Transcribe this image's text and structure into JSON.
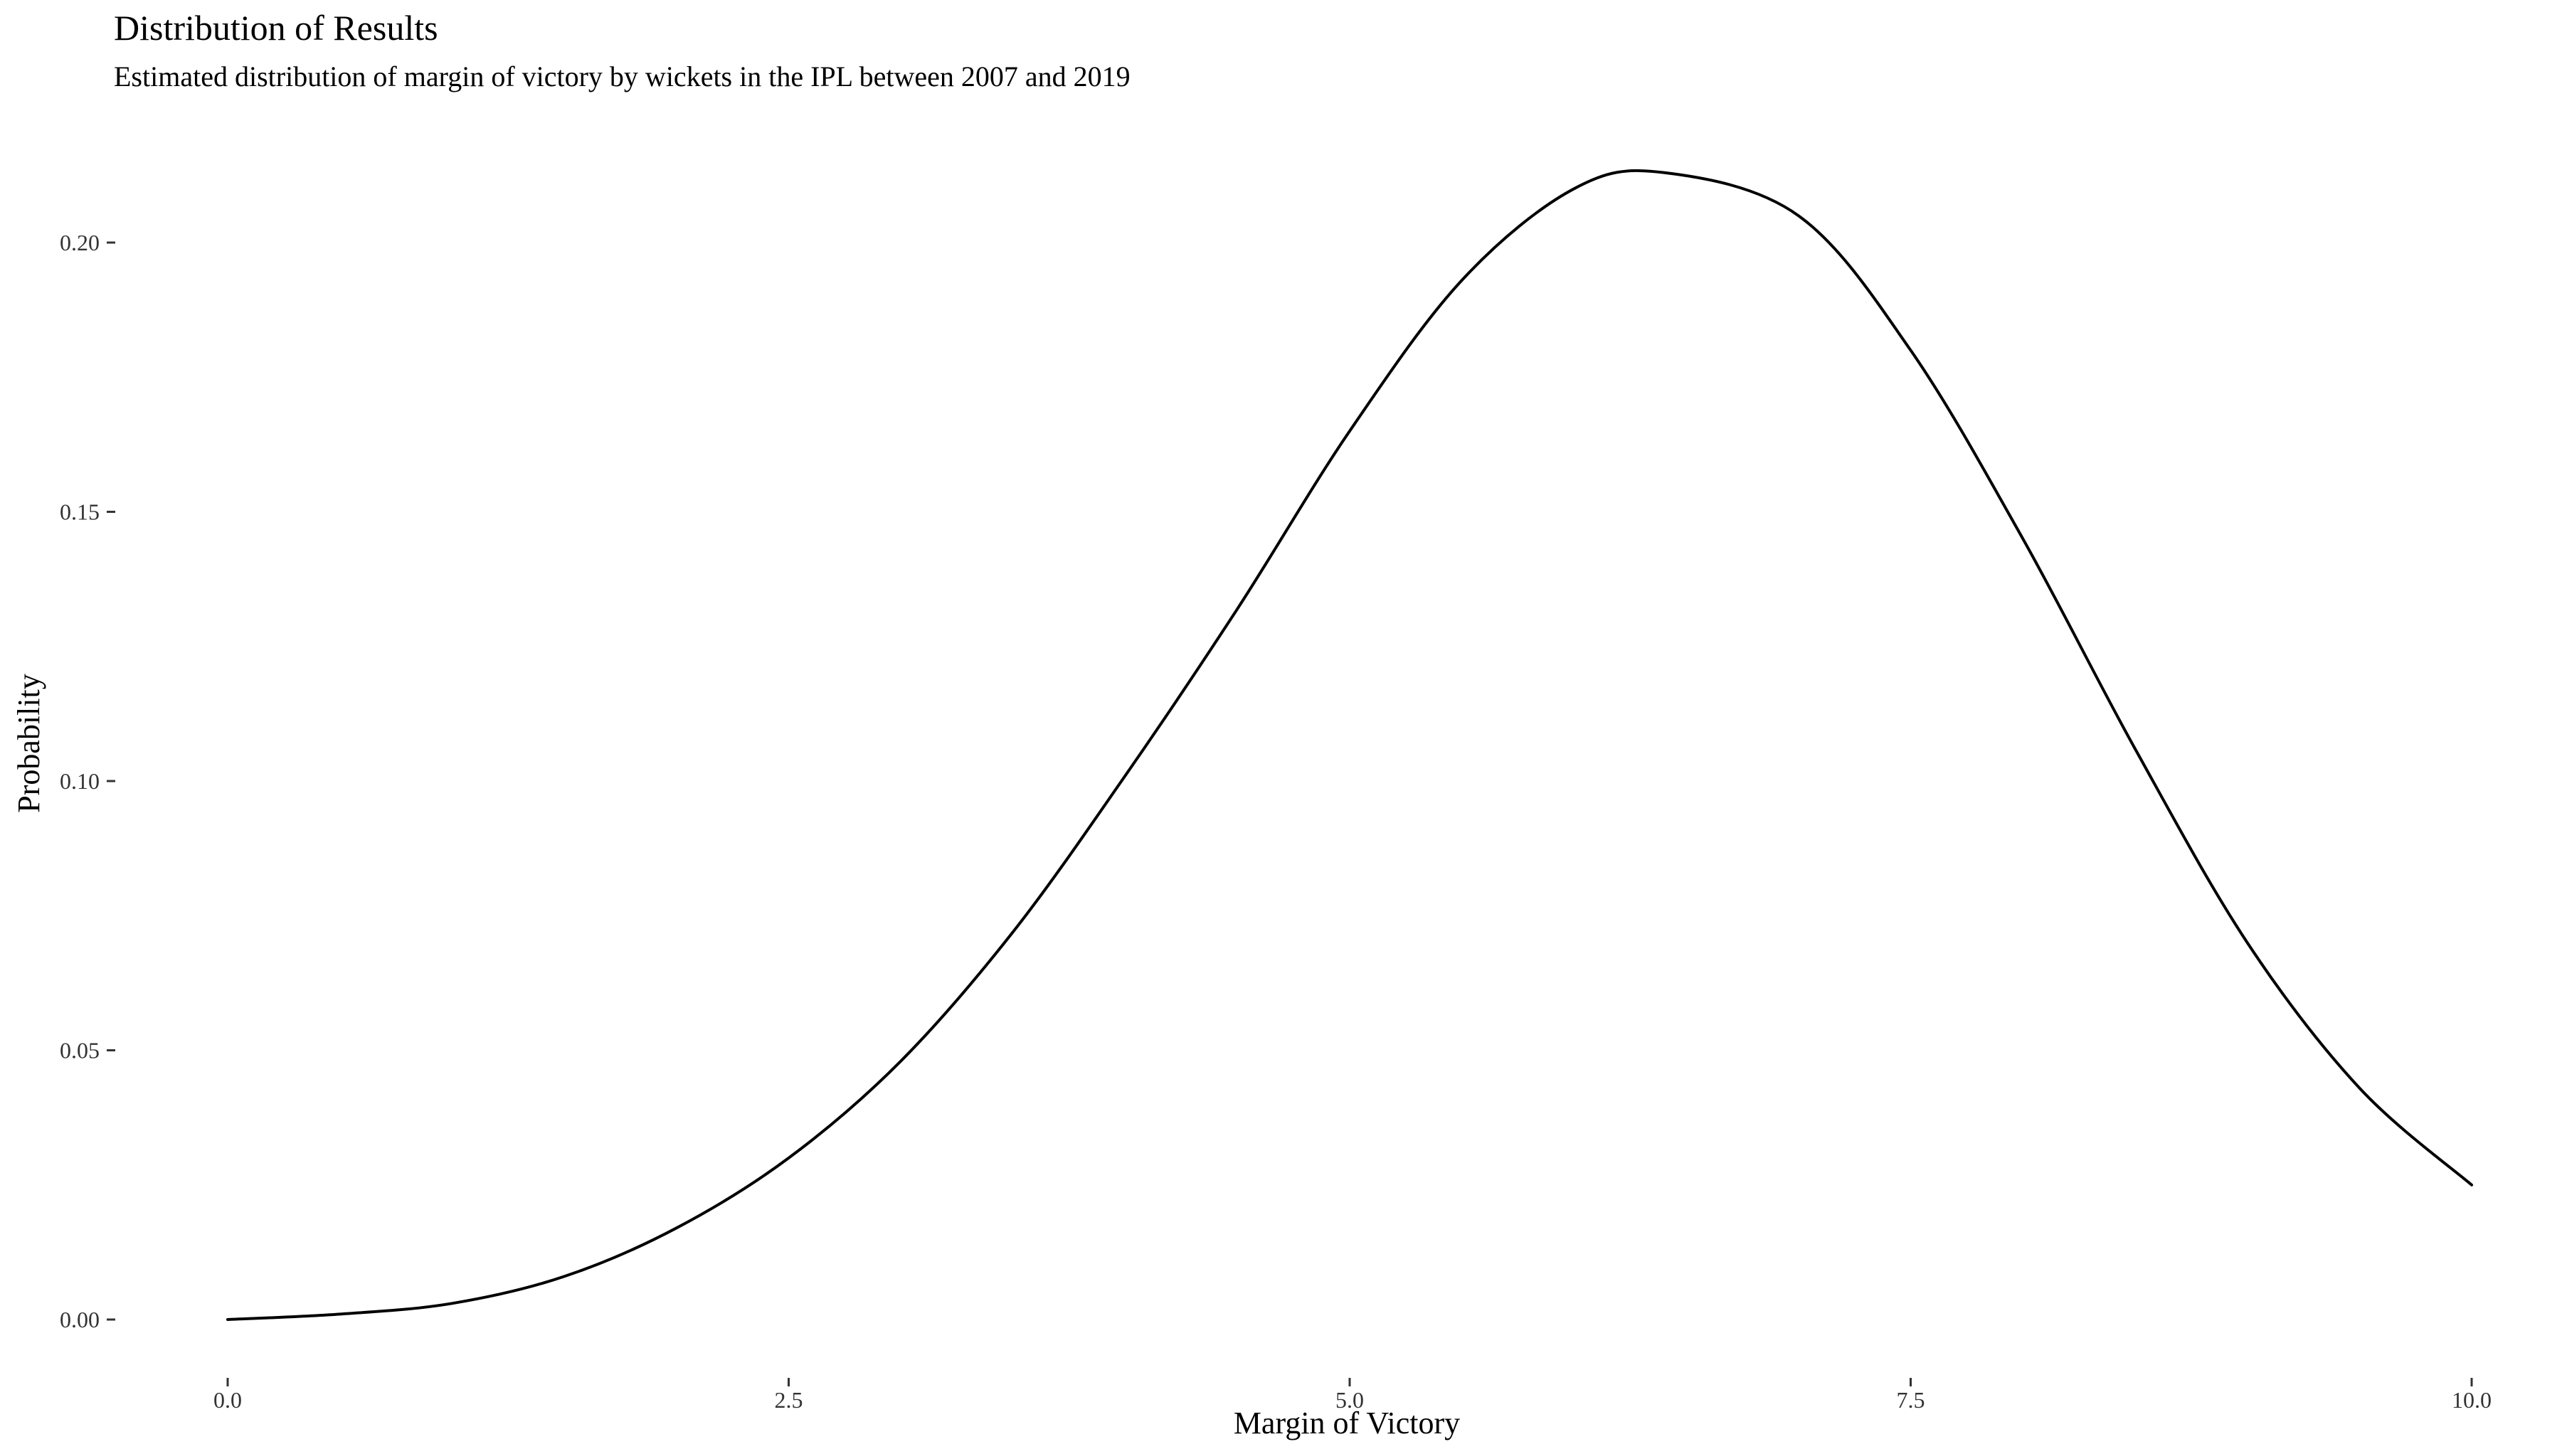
{
  "chart_data": {
    "type": "line",
    "title": "Distribution of Results",
    "subtitle": "Estimated distribution of margin of victory by wickets in the IPL between 2007 and 2019",
    "xlabel": "Margin of Victory",
    "ylabel": "Probability",
    "xlim": [
      0,
      10
    ],
    "ylim": [
      0,
      0.21
    ],
    "x_ticks": [
      "0.0",
      "2.5",
      "5.0",
      "7.5",
      "10.0"
    ],
    "y_ticks": [
      "0.00",
      "0.05",
      "0.10",
      "0.15",
      "0.20"
    ],
    "grid": false,
    "legend": "none",
    "series": [
      {
        "color": "#000000",
        "x": [
          0,
          0.5,
          1.0,
          1.5,
          2.0,
          2.5,
          3.0,
          3.5,
          4.0,
          4.5,
          5.0,
          5.5,
          6.0,
          6.4,
          7.0,
          7.5,
          8.0,
          8.5,
          9.0,
          9.5,
          10.0
        ],
        "y": [
          0.0,
          0.001,
          0.003,
          0.008,
          0.017,
          0.03,
          0.048,
          0.072,
          0.101,
          0.132,
          0.165,
          0.193,
          0.21,
          0.213,
          0.205,
          0.18,
          0.145,
          0.106,
          0.07,
          0.043,
          0.025
        ]
      }
    ]
  }
}
